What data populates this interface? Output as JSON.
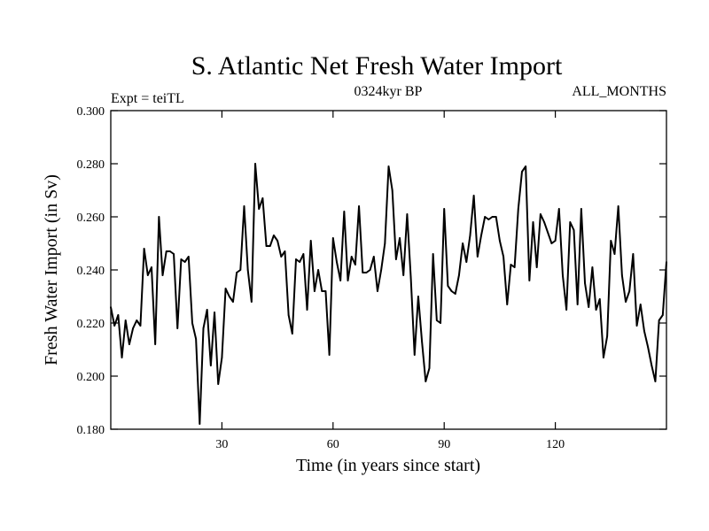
{
  "chart_data": {
    "type": "line",
    "title": "S. Atlantic Net Fresh Water Import",
    "subtitle_left": "Expt = teiTL",
    "subtitle_center": "0324kyr BP",
    "subtitle_right": "ALL_MONTHS",
    "xlabel": "Time (in years since start)",
    "ylabel": "Fresh Water Import (in Sv)",
    "xlim": [
      0,
      150
    ],
    "ylim": [
      0.18,
      0.3
    ],
    "x_ticks": [
      30,
      60,
      90,
      120
    ],
    "x_tick_labels": [
      "30",
      "60",
      "90",
      "120"
    ],
    "y_ticks": [
      0.18,
      0.2,
      0.22,
      0.24,
      0.26,
      0.28,
      0.3
    ],
    "y_tick_labels": [
      "0.180",
      "0.200",
      "0.220",
      "0.240",
      "0.260",
      "0.280",
      "0.300"
    ],
    "grid": false,
    "series": [
      {
        "name": "Fresh Water Import",
        "color": "#000000",
        "x_start": 0,
        "x_step": 1,
        "values": [
          0.226,
          0.219,
          0.223,
          0.207,
          0.221,
          0.212,
          0.218,
          0.221,
          0.219,
          0.248,
          0.238,
          0.241,
          0.212,
          0.26,
          0.238,
          0.247,
          0.247,
          0.246,
          0.218,
          0.244,
          0.243,
          0.245,
          0.22,
          0.214,
          0.182,
          0.218,
          0.225,
          0.204,
          0.224,
          0.197,
          0.207,
          0.233,
          0.23,
          0.228,
          0.239,
          0.24,
          0.264,
          0.24,
          0.228,
          0.28,
          0.263,
          0.267,
          0.249,
          0.249,
          0.253,
          0.251,
          0.245,
          0.247,
          0.223,
          0.216,
          0.244,
          0.243,
          0.246,
          0.225,
          0.251,
          0.232,
          0.24,
          0.232,
          0.232,
          0.208,
          0.252,
          0.243,
          0.236,
          0.262,
          0.236,
          0.245,
          0.242,
          0.264,
          0.239,
          0.239,
          0.24,
          0.245,
          0.232,
          0.24,
          0.25,
          0.279,
          0.27,
          0.244,
          0.252,
          0.238,
          0.261,
          0.237,
          0.208,
          0.23,
          0.213,
          0.198,
          0.203,
          0.246,
          0.221,
          0.22,
          0.263,
          0.234,
          0.232,
          0.231,
          0.238,
          0.25,
          0.243,
          0.253,
          0.268,
          0.245,
          0.253,
          0.26,
          0.259,
          0.26,
          0.26,
          0.251,
          0.245,
          0.227,
          0.242,
          0.241,
          0.263,
          0.277,
          0.279,
          0.236,
          0.258,
          0.241,
          0.261,
          0.258,
          0.254,
          0.25,
          0.251,
          0.263,
          0.238,
          0.225,
          0.258,
          0.255,
          0.227,
          0.263,
          0.235,
          0.226,
          0.241,
          0.225,
          0.229,
          0.207,
          0.215,
          0.251,
          0.246,
          0.264,
          0.238,
          0.228,
          0.232,
          0.246,
          0.219,
          0.227,
          0.217,
          0.211,
          0.204,
          0.198,
          0.221,
          0.223,
          0.243
        ]
      }
    ]
  }
}
